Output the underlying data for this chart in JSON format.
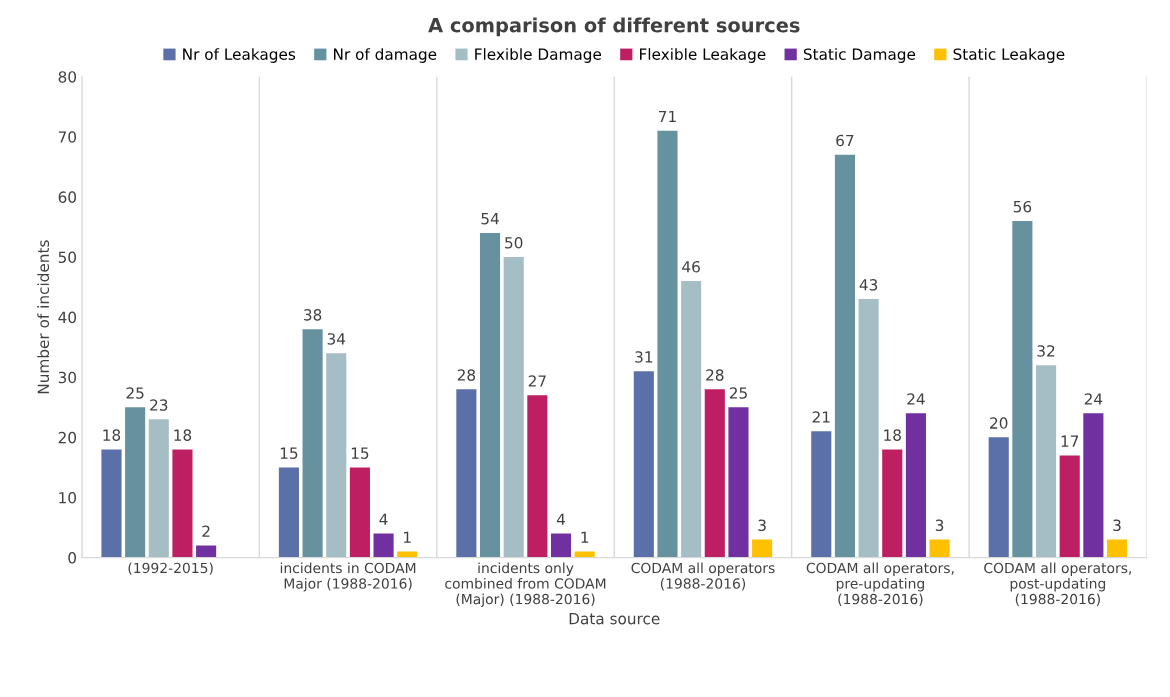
{
  "chart_data": {
    "type": "bar",
    "title": "A comparison of different sources",
    "xlabel": "Data source",
    "ylabel": "Number of incidents",
    "categories": [
      "(1992-2015)",
      "incidents in CODAM Major (1988-2016)",
      "incidents only combined from CODAM (Major) (1988-2016)",
      "CODAM all operators (1988-2016)",
      "CODAM all operators, pre-updating (1988-2016)",
      "CODAM all operators, post-updating (1988-2016)"
    ],
    "series": [
      {
        "name": "Nr of Leakages",
        "color": "#5b6fa8",
        "values": [
          18,
          15,
          28,
          31,
          21,
          20
        ]
      },
      {
        "name": "Nr of damage",
        "color": "#66919e",
        "values": [
          25,
          38,
          54,
          71,
          67,
          56
        ]
      },
      {
        "name": "Flexible Damage",
        "color": "#a5bec6",
        "values": [
          23,
          34,
          50,
          46,
          43,
          32
        ]
      },
      {
        "name": "Flexible Leakage",
        "color": "#be1e62",
        "values": [
          18,
          15,
          27,
          28,
          18,
          17
        ]
      },
      {
        "name": "Static Damage",
        "color": "#7030a0",
        "values": [
          2,
          4,
          4,
          25,
          24,
          24
        ]
      },
      {
        "name": "Static Leakage",
        "color": "#ffc000",
        "values": [
          null,
          1,
          1,
          3,
          3,
          3
        ]
      }
    ],
    "ylim": [
      0,
      80
    ],
    "yticks": [
      0,
      10,
      20,
      30,
      40,
      50,
      60,
      70,
      80
    ],
    "data_labels": true,
    "legend": "top",
    "grid": "x"
  }
}
